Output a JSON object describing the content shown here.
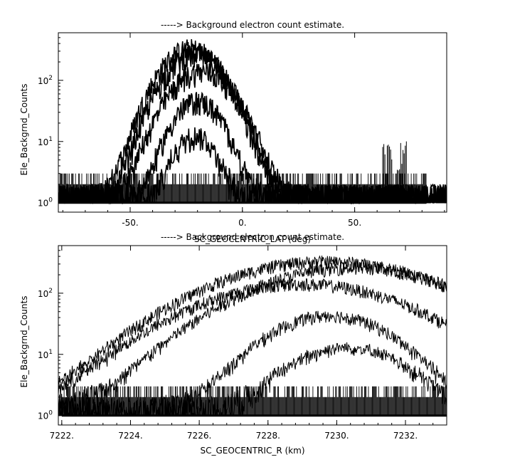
{
  "chart_data": [
    {
      "type": "line",
      "title": "-----> Background electron count estimate.",
      "xlabel": "SC_GEOCENTRIC_LAT (deg)",
      "ylabel": "Ele_Backgrnd_Counts",
      "xlim": [
        -82,
        91
      ],
      "ylim": [
        0.7,
        600
      ],
      "yscale": "log",
      "x_ticks": [
        -50,
        0,
        50
      ],
      "x_tick_labels": [
        "-50.",
        "0.",
        "50."
      ],
      "y_ticks": [
        1,
        10,
        100
      ],
      "y_tick_labels": [
        "10^0",
        "10^1",
        "10^2"
      ],
      "noise_floor": {
        "x_range": [
          -82,
          82
        ],
        "low": 1,
        "high": 3
      },
      "series": [
        {
          "peak_x": -23,
          "peak_y": 330,
          "half_width": 22
        },
        {
          "peak_x": -21,
          "peak_y": 260,
          "half_width": 22
        },
        {
          "peak_x": -18,
          "peak_y": 140,
          "half_width": 23
        },
        {
          "peak_x": -20,
          "peak_y": 45,
          "half_width": 18
        },
        {
          "peak_x": -21,
          "peak_y": 12,
          "half_width": 15
        }
      ],
      "spikes": [
        {
          "x": 64.5,
          "y": 8
        },
        {
          "x": 71,
          "y": 9
        }
      ],
      "grid": false,
      "legend": "none"
    },
    {
      "type": "line",
      "title": "-----> Background electron count estimate.",
      "xlabel": "SC_GEOCENTRIC_R (km)",
      "ylabel": "Ele_Backgrnd_Counts",
      "xlim": [
        7221.9,
        7233.2
      ],
      "ylim": [
        0.7,
        600
      ],
      "yscale": "log",
      "x_ticks": [
        7222,
        7224,
        7226,
        7228,
        7230,
        7232
      ],
      "x_tick_labels": [
        "7222.",
        "7224.",
        "7226.",
        "7228.",
        "7230.",
        "7232."
      ],
      "y_ticks": [
        1,
        10,
        100
      ],
      "y_tick_labels": [
        "10^0",
        "10^1",
        "10^2"
      ],
      "noise_floor": {
        "x_range": [
          7222,
          7233.2
        ],
        "low": 1,
        "high": 3
      },
      "series": [
        {
          "peak_x": 7229.7,
          "peak_y": 330,
          "half_width": 5.2
        },
        {
          "peak_x": 7230.5,
          "peak_y": 260,
          "half_width": 4.8
        },
        {
          "peak_x": 7229.0,
          "peak_y": 140,
          "half_width": 5.0
        },
        {
          "peak_x": 7229.8,
          "peak_y": 42,
          "half_width": 3.0
        },
        {
          "peak_x": 7230.3,
          "peak_y": 12,
          "half_width": 2.8
        }
      ],
      "grid": false,
      "legend": "none"
    }
  ]
}
